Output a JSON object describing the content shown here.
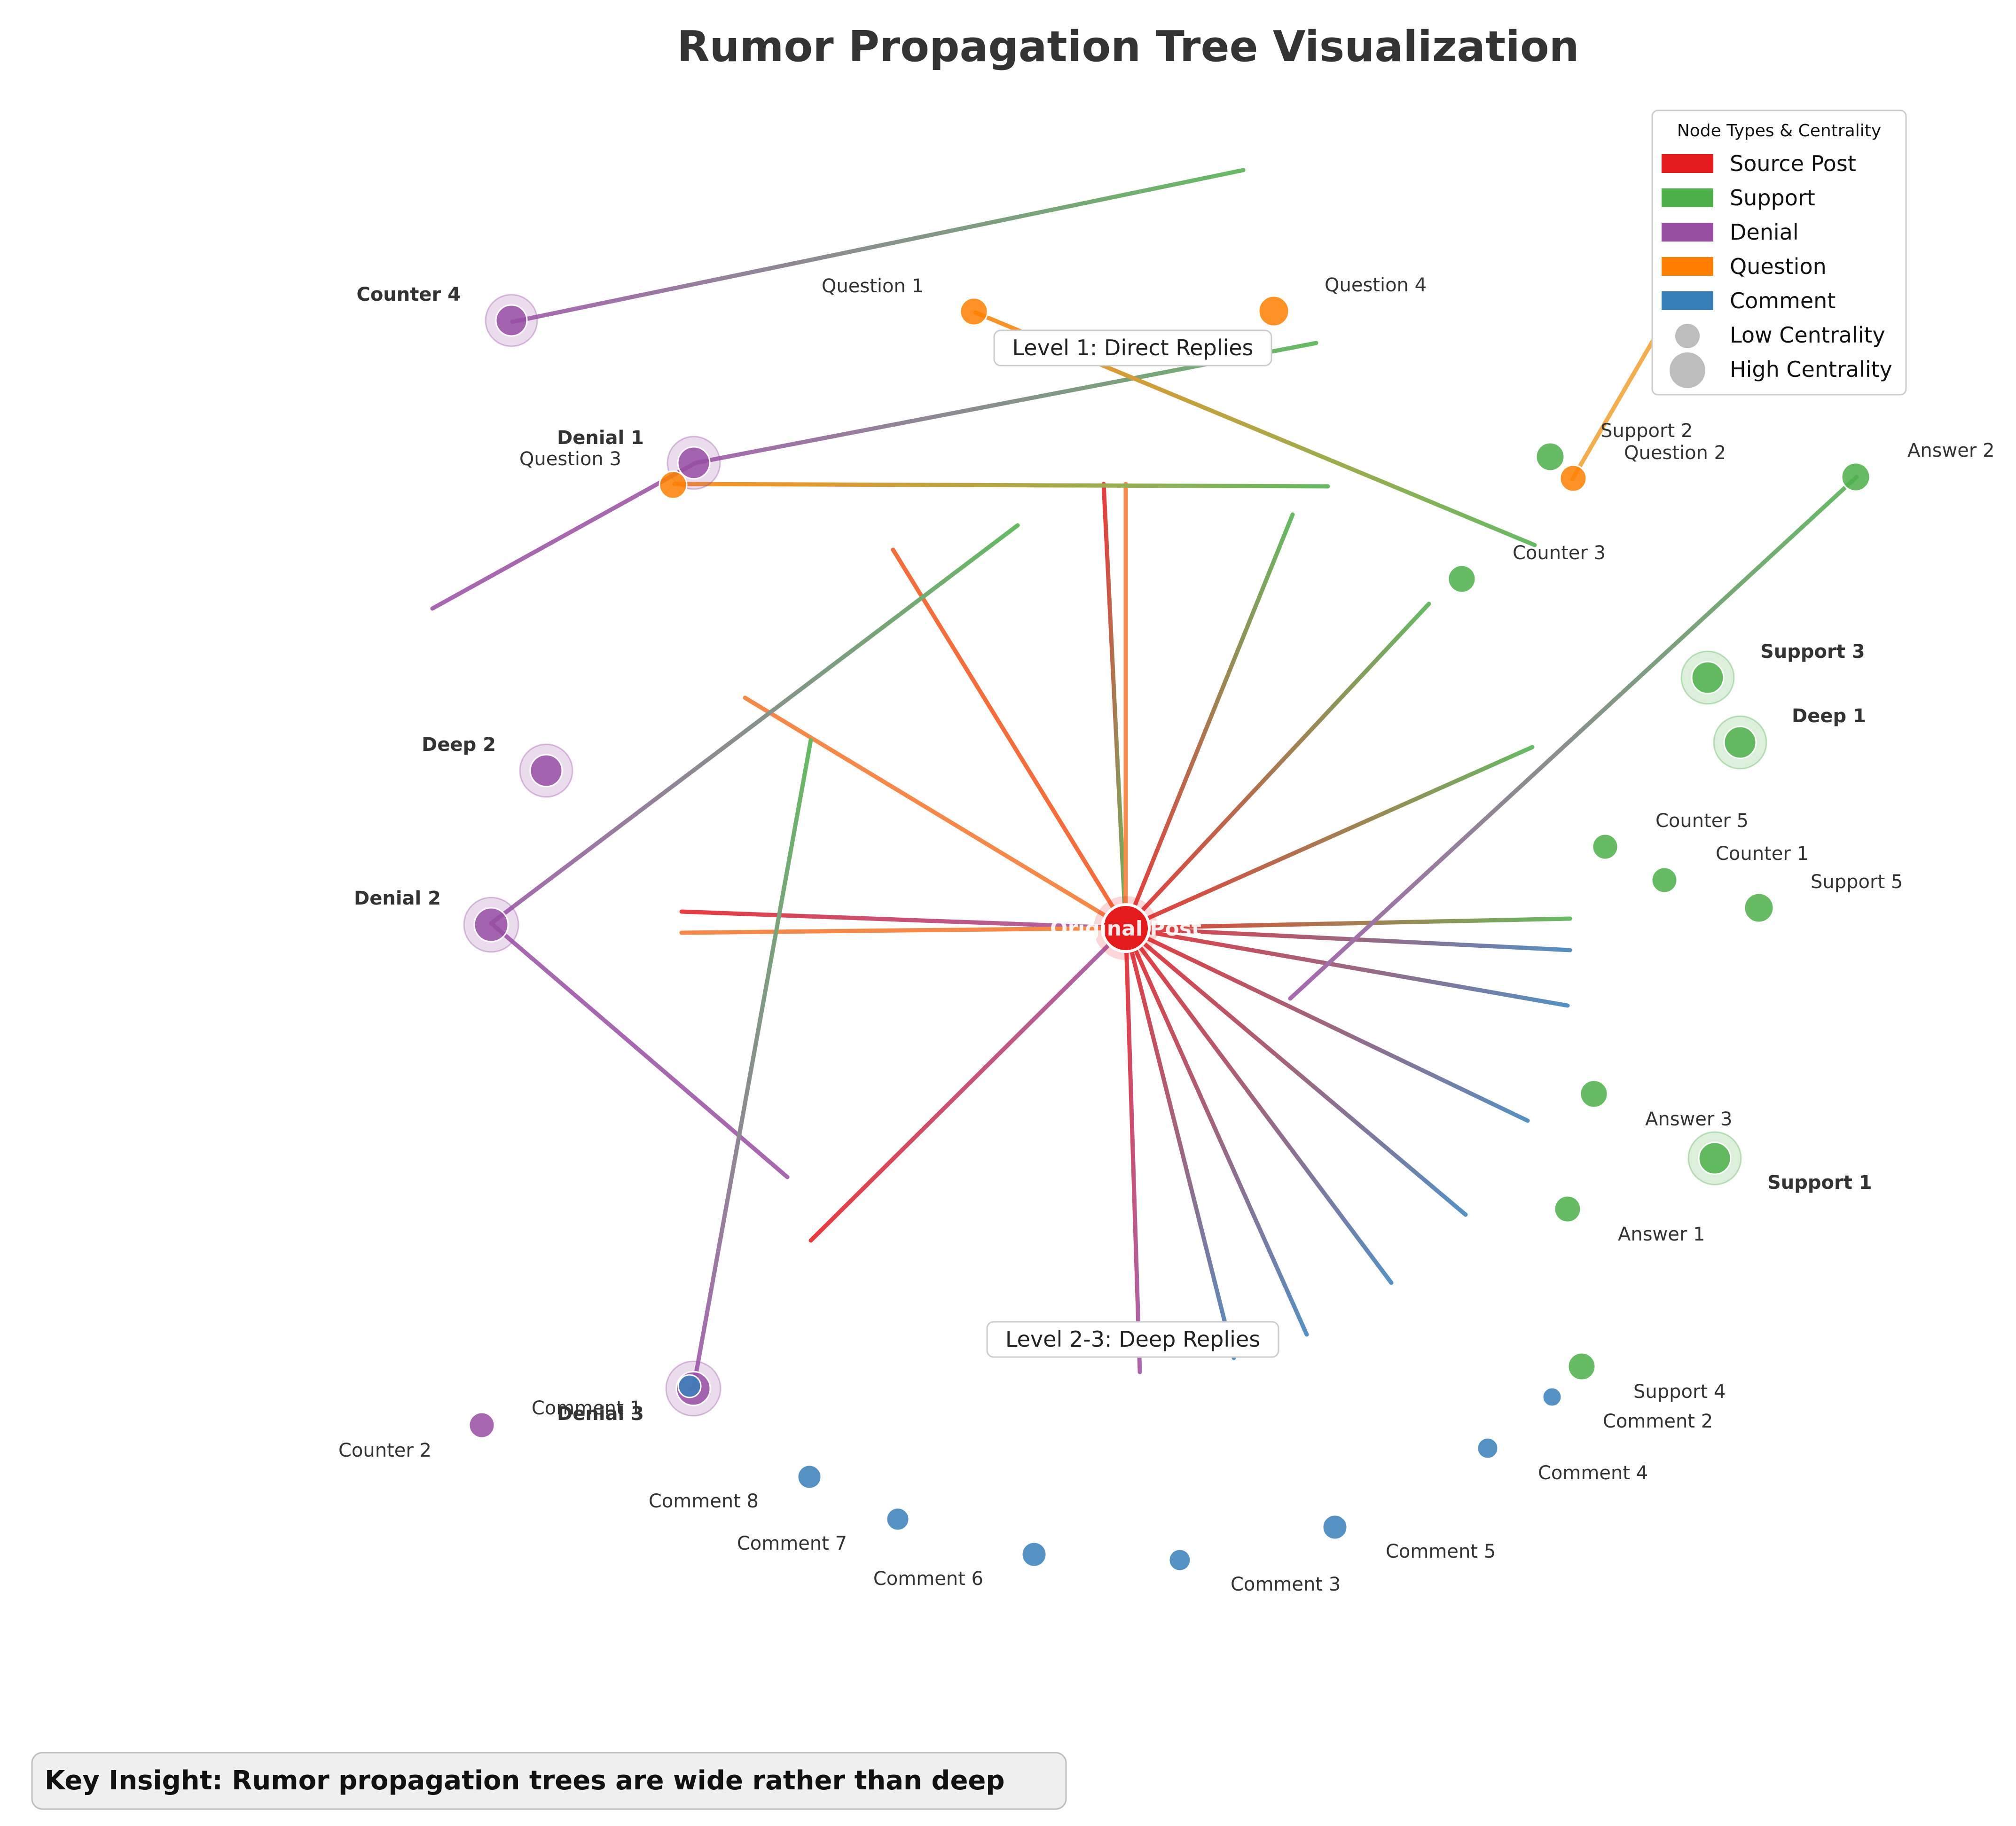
{
  "title": "Rumor Propagation Tree Visualization",
  "level_labels": {
    "level1": "Level 1: Direct Replies",
    "level23": "Level 2-3: Deep Replies"
  },
  "legend": {
    "title": "Node Types & Centrality",
    "items": [
      {
        "label": "Source Post",
        "color": "#e41a1c"
      },
      {
        "label": "Support",
        "color": "#4daf4a"
      },
      {
        "label": "Denial",
        "color": "#984ea3"
      },
      {
        "label": "Question",
        "color": "#ff7f00"
      },
      {
        "label": "Comment",
        "color": "#377eb8"
      }
    ],
    "low_centrality": "Low Centrality",
    "high_centrality": "High Centrality"
  },
  "insight": "Key Insight: Rumor propagation trees are wide rather than deep",
  "source_label": "Original Post",
  "colors": {
    "source": "#e41a1c",
    "support": "#4daf4a",
    "denial": "#984ea3",
    "question": "#ff7f00",
    "comment": "#377eb8"
  },
  "nodes": [
    {
      "label": "Support 1",
      "type": "support",
      "high_centrality": true
    },
    {
      "label": "Support 2",
      "type": "support",
      "high_centrality": false
    },
    {
      "label": "Support 3",
      "type": "support",
      "high_centrality": true
    },
    {
      "label": "Support 4",
      "type": "support",
      "high_centrality": false
    },
    {
      "label": "Support 5",
      "type": "support",
      "high_centrality": false
    },
    {
      "label": "Deep 1",
      "type": "support",
      "high_centrality": true
    },
    {
      "label": "Counter 1",
      "type": "support",
      "high_centrality": false
    },
    {
      "label": "Counter 3",
      "type": "support",
      "high_centrality": false
    },
    {
      "label": "Counter 5",
      "type": "support",
      "high_centrality": false
    },
    {
      "label": "Answer 1",
      "type": "support",
      "high_centrality": false
    },
    {
      "label": "Answer 2",
      "type": "support",
      "high_centrality": false
    },
    {
      "label": "Answer 3",
      "type": "support",
      "high_centrality": false
    },
    {
      "label": "Denial 1",
      "type": "denial",
      "high_centrality": true
    },
    {
      "label": "Denial 2",
      "type": "denial",
      "high_centrality": true
    },
    {
      "label": "Denial 3",
      "type": "denial",
      "high_centrality": true
    },
    {
      "label": "Deep 2",
      "type": "denial",
      "high_centrality": true
    },
    {
      "label": "Counter 2",
      "type": "denial",
      "high_centrality": false
    },
    {
      "label": "Counter 4",
      "type": "denial",
      "high_centrality": true
    },
    {
      "label": "Question 1",
      "type": "question",
      "high_centrality": false
    },
    {
      "label": "Question 2",
      "type": "question",
      "high_centrality": false
    },
    {
      "label": "Question 3",
      "type": "question",
      "high_centrality": false
    },
    {
      "label": "Question 4",
      "type": "question",
      "high_centrality": false
    },
    {
      "label": "Comment 1",
      "type": "comment",
      "high_centrality": false
    },
    {
      "label": "Comment 2",
      "type": "comment",
      "high_centrality": false
    },
    {
      "label": "Comment 3",
      "type": "comment",
      "high_centrality": false
    },
    {
      "label": "Comment 4",
      "type": "comment",
      "high_centrality": false
    },
    {
      "label": "Comment 5",
      "type": "comment",
      "high_centrality": false
    },
    {
      "label": "Comment 6",
      "type": "comment",
      "high_centrality": false
    },
    {
      "label": "Comment 7",
      "type": "comment",
      "high_centrality": false
    },
    {
      "label": "Comment 8",
      "type": "comment",
      "high_centrality": false
    }
  ]
}
